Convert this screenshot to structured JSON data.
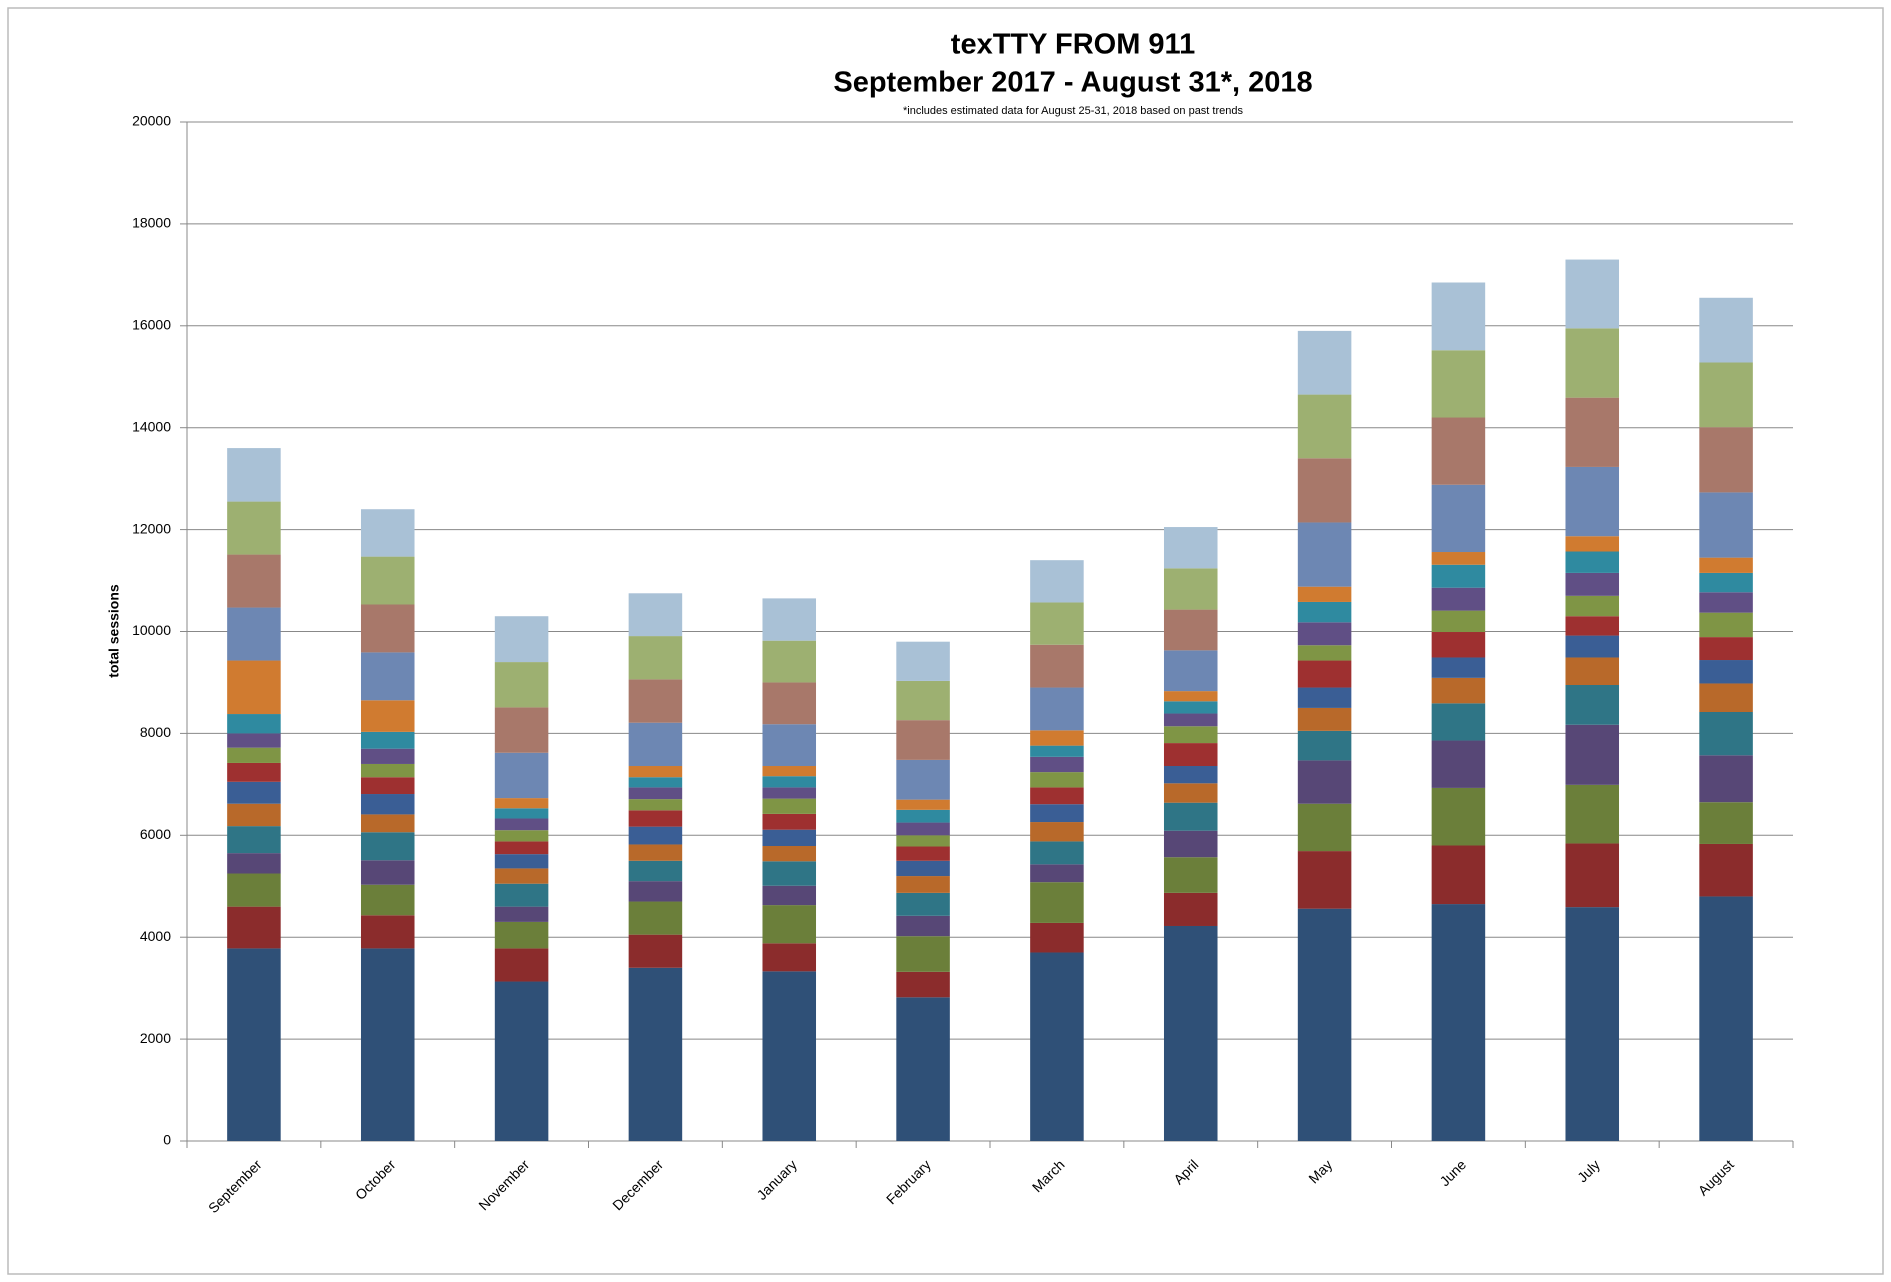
{
  "chart_data": {
    "type": "bar",
    "stacked": true,
    "title": "texTTY FROM 911",
    "subtitle": "September 2017 - August 31*, 2018",
    "note": "*includes estimated data for August 25-31, 2018 based on past trends",
    "y_label": "total sessions",
    "categories": [
      "September",
      "October",
      "November",
      "December",
      "January",
      "February",
      "March",
      "April",
      "May",
      "June",
      "July",
      "August"
    ],
    "ylim": [
      0,
      20000
    ],
    "yticks": [
      0,
      2000,
      4000,
      6000,
      8000,
      10000,
      12000,
      14000,
      16000,
      18000,
      20000
    ],
    "grid": true,
    "series": [
      {
        "color": "#2f5077",
        "values": [
          3780,
          3780,
          3130,
          3400,
          3330,
          2820,
          3700,
          4220,
          4560,
          4650,
          4590,
          4800
        ]
      },
      {
        "color": "#8b2c2c",
        "values": [
          820,
          650,
          650,
          650,
          550,
          500,
          580,
          650,
          1130,
          1150,
          1250,
          1030
        ]
      },
      {
        "color": "#6b7f3a",
        "values": [
          650,
          600,
          520,
          650,
          750,
          700,
          800,
          700,
          930,
          1130,
          1150,
          820
        ]
      },
      {
        "color": "#574776",
        "values": [
          400,
          480,
          300,
          400,
          380,
          400,
          350,
          520,
          850,
          930,
          1180,
          920
        ]
      },
      {
        "color": "#2f7586",
        "values": [
          530,
          550,
          450,
          400,
          480,
          450,
          450,
          550,
          580,
          730,
          780,
          850
        ]
      },
      {
        "color": "#b8692a",
        "values": [
          440,
          350,
          300,
          320,
          300,
          330,
          380,
          380,
          450,
          500,
          540,
          560
        ]
      },
      {
        "color": "#3a5e95",
        "values": [
          430,
          400,
          280,
          350,
          320,
          300,
          350,
          340,
          400,
          400,
          430,
          460
        ]
      },
      {
        "color": "#9e3030",
        "values": [
          370,
          330,
          250,
          320,
          310,
          280,
          330,
          450,
          530,
          500,
          380,
          450
        ]
      },
      {
        "color": "#7f9545",
        "values": [
          300,
          260,
          220,
          220,
          300,
          220,
          300,
          330,
          300,
          420,
          400,
          480
        ]
      },
      {
        "color": "#604f85",
        "values": [
          280,
          300,
          230,
          230,
          220,
          250,
          300,
          250,
          450,
          450,
          450,
          400
        ]
      },
      {
        "color": "#2f8aa0",
        "values": [
          380,
          330,
          200,
          200,
          220,
          250,
          220,
          240,
          400,
          450,
          420,
          380
        ]
      },
      {
        "color": "#d07b30",
        "values": [
          1050,
          620,
          200,
          220,
          200,
          200,
          300,
          200,
          300,
          250,
          300,
          300
        ]
      },
      {
        "color": "#6d87b3",
        "values": [
          1040,
          940,
          890,
          850,
          820,
          780,
          840,
          800,
          1260,
          1320,
          1360,
          1280
        ]
      },
      {
        "color": "#a8786a",
        "values": [
          1040,
          940,
          890,
          850,
          820,
          780,
          840,
          800,
          1260,
          1320,
          1360,
          1280
        ]
      },
      {
        "color": "#9db071",
        "values": [
          1040,
          940,
          890,
          850,
          820,
          770,
          830,
          810,
          1250,
          1320,
          1360,
          1270
        ]
      },
      {
        "color": "#a9c1d6",
        "values": [
          1050,
          930,
          900,
          840,
          830,
          770,
          830,
          810,
          1250,
          1330,
          1350,
          1270
        ]
      }
    ]
  }
}
